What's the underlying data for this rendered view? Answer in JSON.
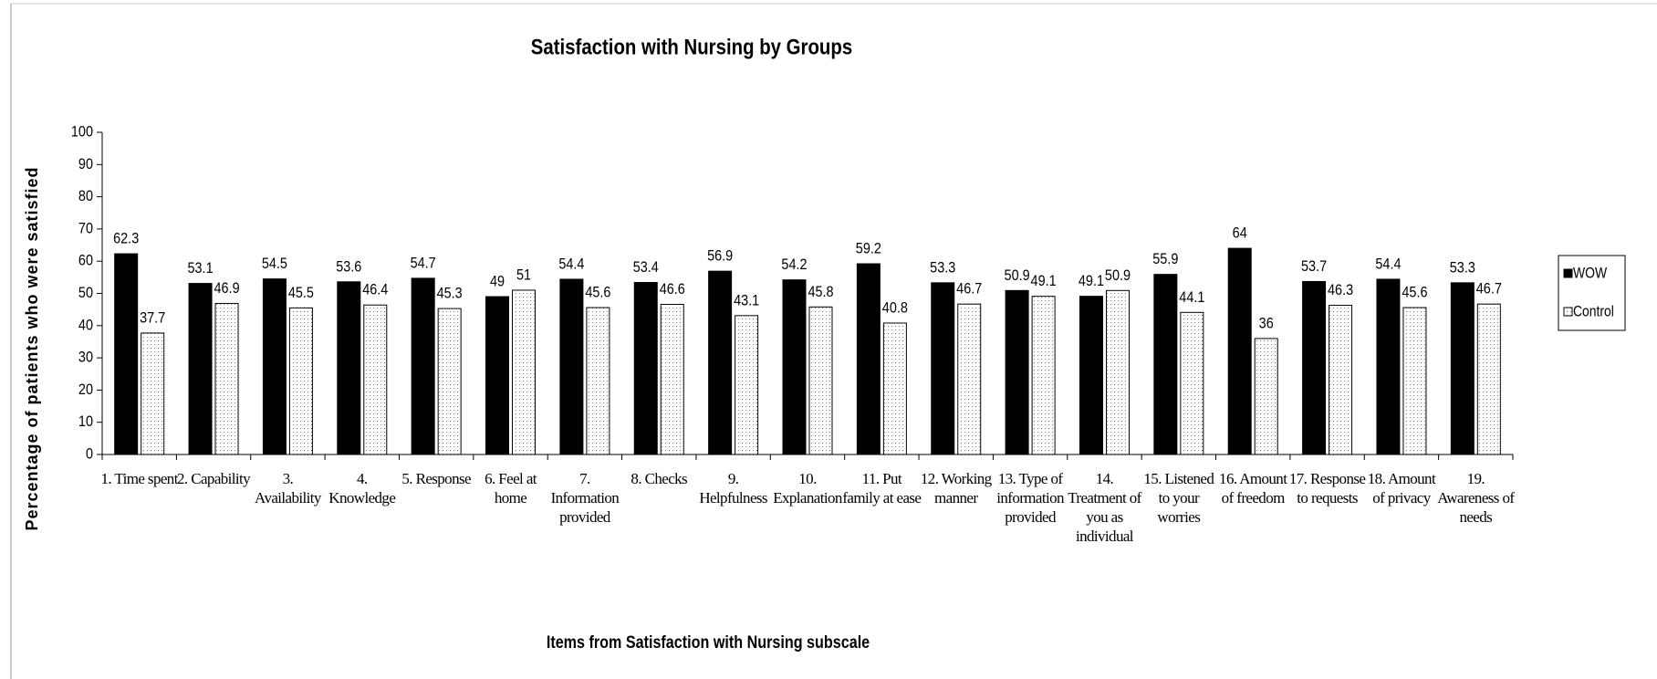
{
  "chart_data": {
    "type": "bar",
    "title": "Satisfaction with Nursing by Groups",
    "y_label": "Percentage of patients who were satisfied",
    "x_label": "Items from Satisfaction with Nursing subscale",
    "categories": [
      "1. Time spent",
      "2. Capability",
      "3. Availability",
      "4. Knowledge",
      "5. Response",
      "6. Feel at home",
      "7. Information provided",
      "8. Checks",
      "9. Helpfulness",
      "10. Explanation",
      "11. Put family at ease",
      "12. Working manner",
      "13. Type of information provided",
      "14. Treatment of you as individual",
      "15. Listened to your worries",
      "16. Amount of freedom",
      "17. Response to requests",
      "18. Amount of privacy",
      "19. Awareness of needs"
    ],
    "series": [
      {
        "name": "WOW",
        "color": "#000000",
        "pattern": "solid",
        "values": [
          62.3,
          53.1,
          54.5,
          53.6,
          54.7,
          49,
          54.4,
          53.4,
          56.9,
          54.2,
          59.2,
          53.3,
          50.9,
          49.1,
          55.9,
          64,
          53.7,
          54.4,
          53.3
        ]
      },
      {
        "name": "Control",
        "color": "#ffffff",
        "pattern": "dots",
        "values": [
          37.7,
          46.9,
          45.5,
          46.4,
          45.3,
          51,
          45.6,
          46.6,
          43.1,
          45.8,
          40.8,
          46.7,
          49.1,
          50.9,
          44.1,
          36,
          46.3,
          45.6,
          46.7
        ]
      }
    ],
    "ylim": [
      0,
      100
    ],
    "yticks": [
      0,
      10,
      20,
      30,
      40,
      50,
      60,
      70,
      80,
      90,
      100
    ],
    "grid": false,
    "legend": "right",
    "data_labels": true
  }
}
